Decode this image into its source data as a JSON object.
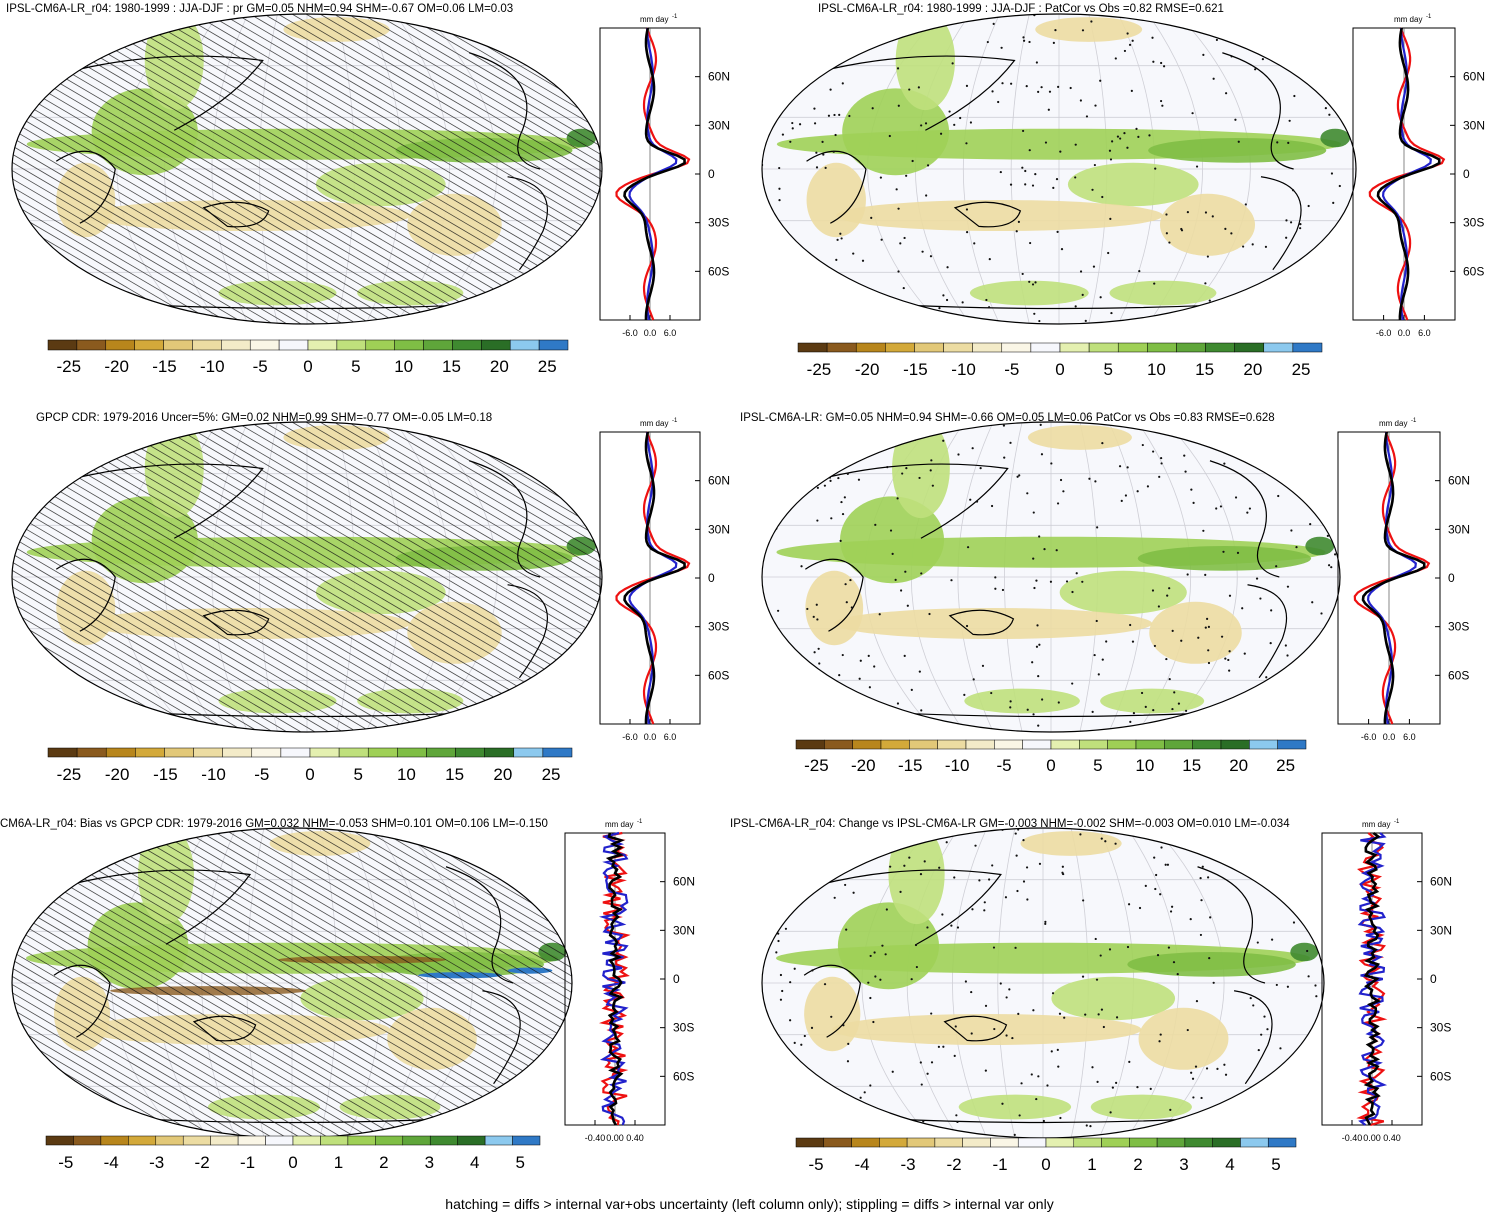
{
  "colorbar": {
    "colors": [
      "#5b3a12",
      "#8a5a1e",
      "#b8861c",
      "#d3a93a",
      "#e2c878",
      "#ecdca2",
      "#f3ebc8",
      "#faf6e6",
      "#f6f7fc",
      "#e4f0b0",
      "#bfe07c",
      "#9fd056",
      "#7fbe45",
      "#5fa63a",
      "#3f8a30",
      "#2a6e26",
      "#8cc9ee",
      "#2f79c6"
    ],
    "labels_big": [
      "-25",
      "-20",
      "-15",
      "-10",
      "-5",
      "0",
      "5",
      "10",
      "15",
      "20",
      "25"
    ],
    "labels_small": [
      "-5",
      "-4",
      "-3",
      "-2",
      "-1",
      "0",
      "1",
      "2",
      "3",
      "4",
      "5"
    ]
  },
  "profile": {
    "unit_label": "mm day",
    "unit_exp": "-1",
    "lat_ticks": [
      "60N",
      "30N",
      "0",
      "30S",
      "60S"
    ],
    "x_ticks_big": [
      "-6.0",
      "0.0",
      "6.0"
    ],
    "x_ticks_small": [
      "-0.40",
      "0.00",
      "0.40"
    ]
  },
  "panels": [
    {
      "id": "p1",
      "title": "IPSL-CM6A-LR_r04: 1980-1999 : JJA-DJF : pr GM=0.05 NHM=0.94 SHM=-0.67 OM=0.06 LM=0.03",
      "hatched": true,
      "stippled": false,
      "scale": "big"
    },
    {
      "id": "p2",
      "title": "IPSL-CM6A-LR_r04: 1980-1999 : JJA-DJF : PatCor vs Obs =0.82 RMSE=0.621",
      "hatched": false,
      "stippled": true,
      "scale": "big"
    },
    {
      "id": "p3",
      "title": "GPCP CDR: 1979-2016 Uncer=5%: GM=0.02 NHM=0.99 SHM=-0.77 OM=-0.05 LM=0.18",
      "hatched": true,
      "stippled": false,
      "scale": "big"
    },
    {
      "id": "p4",
      "title": "IPSL-CM6A-LR: GM=0.05 NHM=0.94 SHM=-0.66 OM=0.05 LM=0.06 PatCor vs Obs =0.83 RMSE=0.628",
      "hatched": false,
      "stippled": true,
      "scale": "big"
    },
    {
      "id": "p5",
      "title": "CM6A-LR_r04: Bias vs GPCP CDR: 1979-2016 GM=0.032 NHM=-0.053 SHM=0.101 OM=0.106 LM=-0.150",
      "hatched": true,
      "stippled": false,
      "scale": "small"
    },
    {
      "id": "p6",
      "title": "IPSL-CM6A-LR_r04: Change vs IPSL-CM6A-LR GM=-0.003 NHM=-0.002 SHM=-0.003 OM=0.010 LM=-0.034",
      "hatched": false,
      "stippled": true,
      "scale": "small"
    }
  ],
  "footer": "hatching = diffs > internal var+obs uncertainty (left column only); stippling = diffs > internal var only"
}
